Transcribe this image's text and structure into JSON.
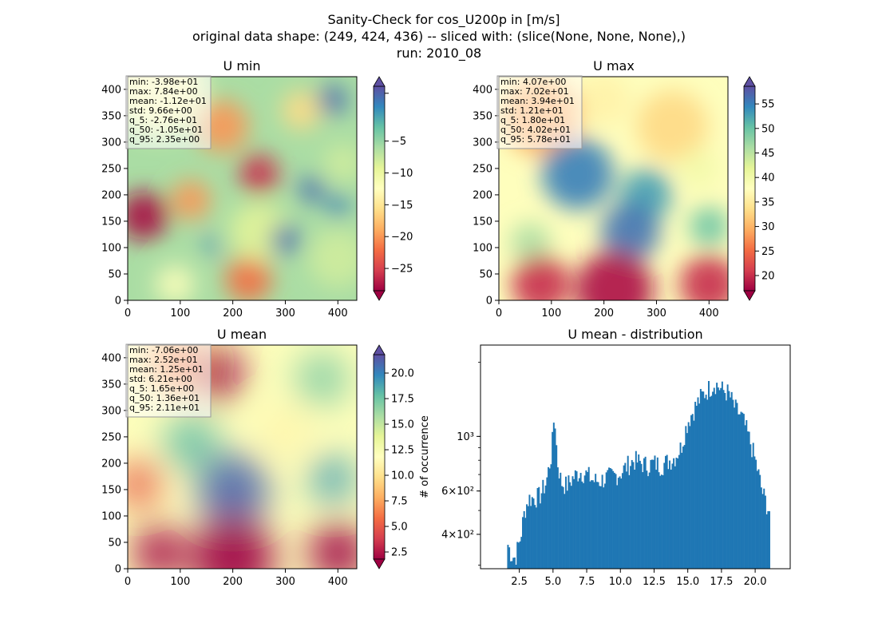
{
  "figure": {
    "title_lines": [
      "Sanity-Check for cos_U200p in [m/s]",
      "original data shape: (249, 424, 436) -- sliced with: (slice(None, None, None),)",
      "run: 2010_08"
    ]
  },
  "colormap": {
    "name": "Spectral",
    "stops": [
      "#9e0142",
      "#d53e4f",
      "#f46d43",
      "#fdae61",
      "#fee08b",
      "#ffffbf",
      "#e6f598",
      "#abdda4",
      "#66c2a5",
      "#3288bd",
      "#5e4fa2"
    ]
  },
  "chart_data": [
    {
      "type": "heatmap",
      "title": "U min",
      "xlim": [
        0,
        436
      ],
      "ylim": [
        0,
        424
      ],
      "xticks": [
        0,
        100,
        200,
        300,
        400
      ],
      "yticks": [
        0,
        50,
        100,
        150,
        200,
        250,
        300,
        350,
        400
      ],
      "colorbar": {
        "vmin": -28.5,
        "vmax": 3.6,
        "ticks": [
          2.5,
          -5,
          -10,
          -15,
          -20,
          -25
        ],
        "tick_labels": [
          "",
          "−5",
          "−10",
          "−15",
          "−20",
          "−25"
        ],
        "extend": "both"
      },
      "stats": [
        "min: -3.98e+01",
        "max: 7.84e+00",
        "mean: -1.12e+01",
        "std: 9.66e+00",
        "q_5: -2.76e+01",
        "q_50: -1.05e+01",
        "q_95: 2.35e+00"
      ],
      "fields_note": "field rendered as coloured blobs",
      "blobs": [
        {
          "x": 60,
          "y": 400,
          "r": 140,
          "v": -13
        },
        {
          "x": 30,
          "y": 160,
          "r": 75,
          "v": -28
        },
        {
          "x": 250,
          "y": 240,
          "r": 60,
          "v": -26
        },
        {
          "x": 180,
          "y": 330,
          "r": 80,
          "v": -20
        },
        {
          "x": 230,
          "y": 40,
          "r": 70,
          "v": -22
        },
        {
          "x": 120,
          "y": 190,
          "r": 60,
          "v": -20
        },
        {
          "x": 400,
          "y": 80,
          "r": 90,
          "v": -8
        },
        {
          "x": 410,
          "y": 260,
          "r": 60,
          "v": -8
        },
        {
          "x": 90,
          "y": 30,
          "r": 60,
          "v": -12
        },
        {
          "x": 330,
          "y": 360,
          "r": 60,
          "v": -16
        },
        {
          "x": 250,
          "y": 130,
          "r": 90,
          "v": -9
        },
        {
          "x": 390,
          "y": 380,
          "r": 45,
          "v": 2
        },
        {
          "x": 300,
          "y": 115,
          "r": 45,
          "v": 2
        },
        {
          "x": 350,
          "y": 210,
          "r": 40,
          "v": 2
        },
        {
          "x": 400,
          "y": 180,
          "r": 35,
          "v": 1
        },
        {
          "x": 160,
          "y": 105,
          "r": 25,
          "v": 1
        }
      ]
    },
    {
      "type": "heatmap",
      "title": "U max",
      "xlim": [
        0,
        436
      ],
      "ylim": [
        0,
        424
      ],
      "xticks": [
        0,
        100,
        200,
        300,
        400
      ],
      "yticks": [
        0,
        50,
        100,
        150,
        200,
        250,
        300,
        350,
        400
      ],
      "colorbar": {
        "vmin": 16.9,
        "vmax": 58.6,
        "ticks": [
          55,
          50,
          45,
          40,
          35,
          30,
          25,
          20
        ],
        "tick_labels": [
          "55",
          "50",
          "45",
          "40",
          "35",
          "30",
          "25",
          "20"
        ],
        "extend": "both"
      },
      "stats": [
        "min: 4.07e+00",
        "max: 7.02e+01",
        "mean: 3.94e+01",
        "std: 1.21e+01",
        "q_5: 1.80e+01",
        "q_50: 4.02e+01",
        "q_95: 5.78e+01"
      ],
      "blobs": [
        {
          "x": 80,
          "y": 350,
          "r": 120,
          "v": 29
        },
        {
          "x": 330,
          "y": 330,
          "r": 110,
          "v": 33
        },
        {
          "x": 200,
          "y": 380,
          "r": 80,
          "v": 36
        },
        {
          "x": 150,
          "y": 240,
          "r": 110,
          "v": 55
        },
        {
          "x": 280,
          "y": 200,
          "r": 80,
          "v": 53
        },
        {
          "x": 250,
          "y": 130,
          "r": 90,
          "v": 56
        },
        {
          "x": 400,
          "y": 140,
          "r": 60,
          "v": 50
        },
        {
          "x": 60,
          "y": 110,
          "r": 60,
          "v": 46
        },
        {
          "x": 380,
          "y": 250,
          "r": 60,
          "v": 40
        },
        {
          "x": 220,
          "y": 20,
          "r": 120,
          "v": 18
        },
        {
          "x": 80,
          "y": 30,
          "r": 90,
          "v": 20
        },
        {
          "x": 400,
          "y": 30,
          "r": 90,
          "v": 20
        }
      ]
    },
    {
      "type": "heatmap",
      "title": "U mean",
      "xlim": [
        0,
        436
      ],
      "ylim": [
        0,
        424
      ],
      "xticks": [
        0,
        100,
        200,
        300,
        400
      ],
      "yticks": [
        0,
        50,
        100,
        150,
        200,
        250,
        300,
        350,
        400
      ],
      "colorbar": {
        "vmin": 1.8,
        "vmax": 21.8,
        "ticks": [
          20.0,
          17.5,
          15.0,
          12.5,
          10.0,
          7.5,
          5.0,
          2.5
        ],
        "tick_labels": [
          "20.0",
          "17.5",
          "15.0",
          "12.5",
          "10.0",
          "7.5",
          "5.0",
          "2.5"
        ],
        "extend": "both"
      },
      "stats": [
        "min: -7.06e+00",
        "max: 2.52e+01",
        "mean: 1.25e+01",
        "std: 6.21e+00",
        "q_5: 1.65e+00",
        "q_50: 1.36e+01",
        "q_95: 2.11e+01"
      ],
      "blobs": [
        {
          "x": 170,
          "y": 370,
          "r": 80,
          "v": 1
        },
        {
          "x": 90,
          "y": 390,
          "r": 80,
          "v": 6
        },
        {
          "x": 200,
          "y": 150,
          "r": 110,
          "v": 21
        },
        {
          "x": 120,
          "y": 240,
          "r": 80,
          "v": 18
        },
        {
          "x": 390,
          "y": 170,
          "r": 70,
          "v": 19
        },
        {
          "x": 370,
          "y": 360,
          "r": 80,
          "v": 17
        },
        {
          "x": 20,
          "y": 160,
          "r": 70,
          "v": 5
        },
        {
          "x": 300,
          "y": 260,
          "r": 70,
          "v": 11
        },
        {
          "x": 200,
          "y": 20,
          "r": 130,
          "v": 1
        },
        {
          "x": 60,
          "y": 30,
          "r": 80,
          "v": 2
        },
        {
          "x": 400,
          "y": 30,
          "r": 90,
          "v": 1
        }
      ]
    },
    {
      "type": "bar",
      "title": "U mean - distribution",
      "ylabel": "# of occurrence",
      "xlim": [
        -0.38,
        22.6
      ],
      "ylog": true,
      "ylim": [
        290,
        2350
      ],
      "xticks": [
        2.5,
        5.0,
        7.5,
        10.0,
        12.5,
        15.0,
        17.5,
        20.0
      ],
      "yticks": [
        {
          "value": 400,
          "label": "4×10²"
        },
        {
          "value": 600,
          "label": "6×10²"
        },
        {
          "value": 1000,
          "label": "10³"
        }
      ],
      "bin_start": 1.6,
      "bin_width": 0.1,
      "color": "#1f77b4",
      "shape_points": [
        [
          1.6,
          370
        ],
        [
          1.9,
          330
        ],
        [
          2.2,
          320
        ],
        [
          2.6,
          390
        ],
        [
          2.9,
          500
        ],
        [
          3.2,
          560
        ],
        [
          3.5,
          560
        ],
        [
          4.0,
          570
        ],
        [
          4.5,
          650
        ],
        [
          4.9,
          850
        ],
        [
          5.1,
          1250
        ],
        [
          5.3,
          800
        ],
        [
          5.6,
          650
        ],
        [
          6.0,
          630
        ],
        [
          6.5,
          680
        ],
        [
          7.0,
          720
        ],
        [
          7.5,
          700
        ],
        [
          8.0,
          660
        ],
        [
          8.5,
          660
        ],
        [
          9.0,
          680
        ],
        [
          9.5,
          690
        ],
        [
          10.0,
          710
        ],
        [
          10.5,
          760
        ],
        [
          11.0,
          800
        ],
        [
          11.5,
          780
        ],
        [
          12.0,
          760
        ],
        [
          12.5,
          780
        ],
        [
          13.0,
          760
        ],
        [
          13.5,
          790
        ],
        [
          14.0,
          820
        ],
        [
          14.5,
          900
        ],
        [
          15.0,
          1150
        ],
        [
          15.5,
          1300
        ],
        [
          16.0,
          1450
        ],
        [
          16.5,
          1550
        ],
        [
          17.0,
          1650
        ],
        [
          17.5,
          1550
        ],
        [
          18.0,
          1500
        ],
        [
          18.5,
          1300
        ],
        [
          19.0,
          1200
        ],
        [
          19.5,
          1000
        ],
        [
          20.0,
          800
        ],
        [
          20.5,
          600
        ],
        [
          21.0,
          500
        ]
      ]
    }
  ]
}
